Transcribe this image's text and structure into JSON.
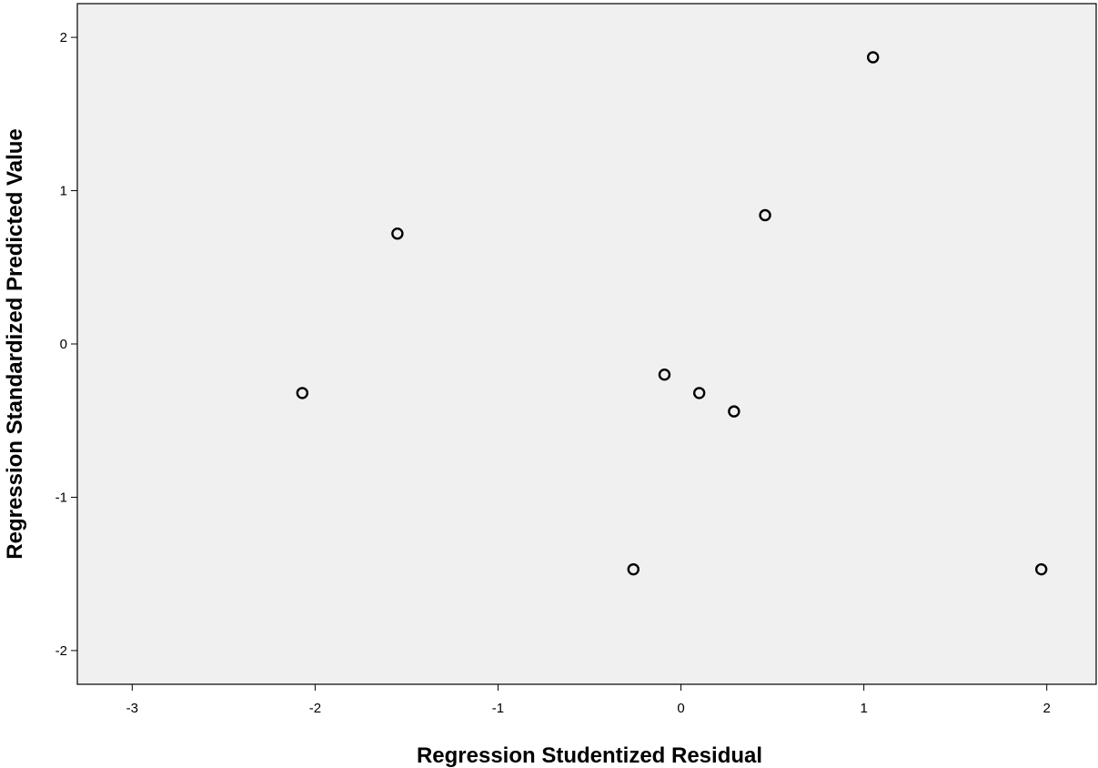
{
  "chart_data": {
    "type": "scatter",
    "title": "",
    "xlabel": "Regression Studentized Residual",
    "ylabel": "Regression Standardized Predicted Value",
    "xlim": [
      -3.3,
      2.27
    ],
    "ylim": [
      -2.22,
      2.22
    ],
    "x_ticks": [
      -3,
      -2,
      -1,
      0,
      1,
      2
    ],
    "y_ticks": [
      -2,
      -1,
      0,
      1,
      2
    ],
    "x_tick_labels": [
      "-3",
      "-2",
      "-1",
      "0",
      "1",
      "2"
    ],
    "y_tick_labels": [
      "-2",
      "-1",
      "0",
      "1",
      "2"
    ],
    "grid": false,
    "colors": {
      "plot_background": "#f0f0f0",
      "marker_stroke": "#000000",
      "axis": "#000000"
    },
    "marker": "open-circle",
    "series": [
      {
        "points": [
          {
            "x": -2.07,
            "y": -0.32
          },
          {
            "x": -1.55,
            "y": 0.72
          },
          {
            "x": -0.26,
            "y": -1.47
          },
          {
            "x": -0.09,
            "y": -0.2
          },
          {
            "x": 0.1,
            "y": -0.32
          },
          {
            "x": 0.29,
            "y": -0.44
          },
          {
            "x": 0.46,
            "y": 0.84
          },
          {
            "x": 1.05,
            "y": 1.87
          },
          {
            "x": 1.97,
            "y": -1.47
          }
        ]
      }
    ]
  }
}
